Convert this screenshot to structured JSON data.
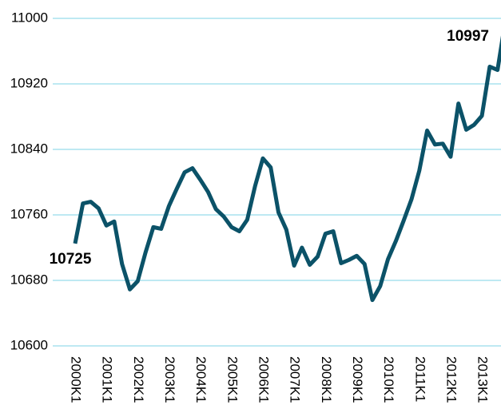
{
  "chart_data": {
    "type": "line",
    "categories": [
      "2000K1",
      null,
      null,
      null,
      "2001K1",
      null,
      null,
      null,
      "2002K1",
      null,
      null,
      null,
      "2003K1",
      null,
      null,
      null,
      "2004K1",
      null,
      null,
      null,
      "2005K1",
      null,
      null,
      null,
      "2006K1",
      null,
      null,
      null,
      "2007K1",
      null,
      null,
      null,
      "2008K1",
      null,
      null,
      null,
      "2009K1",
      null,
      null,
      null,
      "2010K1",
      null,
      null,
      null,
      "2011K1",
      null,
      null,
      null,
      "2012K1",
      null,
      null,
      null,
      "2013K1",
      null,
      null,
      null
    ],
    "values": [
      10725,
      10774,
      10776,
      10768,
      10747,
      10752,
      10700,
      10669,
      10679,
      10714,
      10745,
      10743,
      10771,
      10792,
      10812,
      10817,
      10803,
      10788,
      10767,
      10758,
      10745,
      10740,
      10754,
      10795,
      10829,
      10818,
      10763,
      10742,
      10698,
      10720,
      10699,
      10709,
      10737,
      10740,
      10701,
      10705,
      10710,
      10700,
      10656,
      10673,
      10706,
      10728,
      10753,
      10779,
      10814,
      10863,
      10846,
      10847,
      10831,
      10896,
      10864,
      10870,
      10881,
      10941,
      10937,
      10997
    ],
    "color": "#0b5268",
    "grid_color": "#a8e2ee",
    "ylim": [
      10600,
      11000
    ],
    "yticks": [
      10600,
      10680,
      10760,
      10840,
      10920,
      11000
    ],
    "grid": true,
    "data_labels": "first-last"
  }
}
